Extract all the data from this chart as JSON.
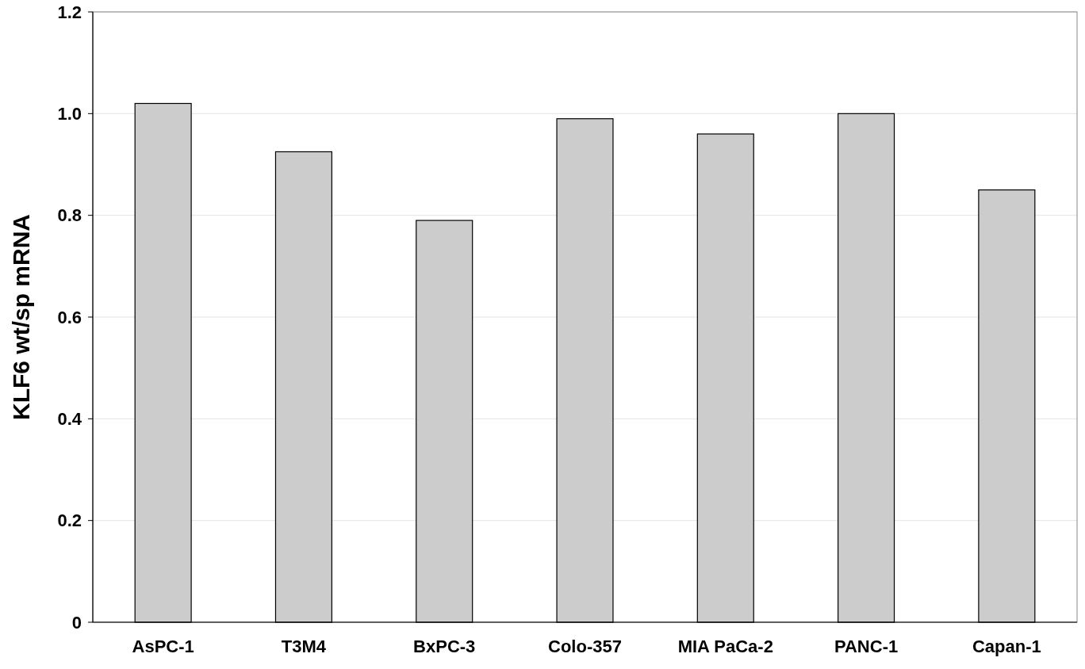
{
  "chart_data": {
    "type": "bar",
    "ylabel": "KLF6 wt/sp mRNA",
    "categories": [
      "AsPC-1",
      "T3M4",
      "BxPC-3",
      "Colo-357",
      "MIA PaCa-2",
      "PANC-1",
      "Capan-1"
    ],
    "values": [
      1.02,
      0.925,
      0.79,
      0.99,
      0.96,
      1.0,
      0.85
    ],
    "color": "#cccccc",
    "ylim": [
      0,
      1.2
    ],
    "yticks": [
      0,
      0.2,
      0.4,
      0.6,
      0.8,
      {
        "value": 1,
        "label": "1.0"
      },
      {
        "value": 1.2,
        "label": "1.2"
      }
    ],
    "grid": "y"
  }
}
